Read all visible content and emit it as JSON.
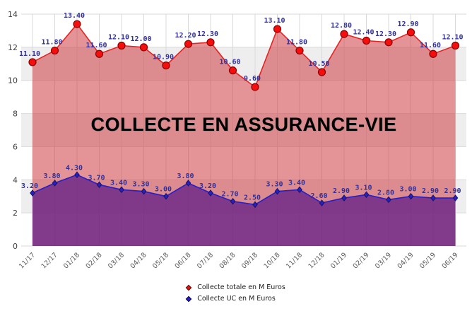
{
  "title": "COLLECTE EN ASSURANCE-VIE",
  "legend": {
    "items": [
      {
        "label": "Collecte totale en M Euros",
        "marker": "diamond-icon",
        "color": "#e81111",
        "edge_color": "#5d0000"
      },
      {
        "label": "Collecte UC en M Euros",
        "marker": "diamond-icon",
        "color": "#2a1fc4",
        "edge_color": "#000050"
      }
    ]
  },
  "chart_data": {
    "type": "area",
    "title": "COLLECTE EN ASSURANCE-VIE",
    "categories": [
      "11/17",
      "12/17",
      "01/18",
      "02/18",
      "03/18",
      "04/18",
      "05/18",
      "06/18",
      "07/18",
      "08/18",
      "09/18",
      "10/18",
      "11/18",
      "12/18",
      "01/19",
      "02/19",
      "03/19",
      "04/19",
      "05/19",
      "06/19"
    ],
    "series": [
      {
        "name": "Collecte totale en M Euros",
        "values": [
          11.1,
          11.8,
          13.4,
          11.6,
          12.1,
          12.0,
          10.9,
          12.2,
          12.3,
          10.6,
          9.6,
          13.1,
          11.8,
          10.5,
          12.8,
          12.4,
          12.3,
          12.9,
          11.6,
          12.1
        ],
        "line_color": "#e52323",
        "fill_color": "rgba(205,60,66,0.55)",
        "marker": "circle",
        "marker_color": "#f60d0d",
        "marker_edge": "#8b0000"
      },
      {
        "name": "Collecte UC en M Euros",
        "values": [
          3.2,
          3.8,
          4.3,
          3.7,
          3.4,
          3.3,
          3.0,
          3.8,
          3.2,
          2.7,
          2.5,
          3.3,
          3.4,
          2.6,
          2.9,
          3.1,
          2.8,
          3.0,
          2.9,
          2.9
        ],
        "line_color": "#2620c9",
        "fill_color": "rgba(105,35,135,0.80)",
        "marker": "diamond",
        "marker_color": "#2a1fc4",
        "marker_edge": "#141466"
      }
    ],
    "xlabel": "",
    "ylabel": "",
    "ylim": [
      0,
      14
    ],
    "yticks": [
      0,
      2,
      4,
      6,
      8,
      10,
      12,
      14
    ],
    "grid": true,
    "band_colors": [
      "#ffffff",
      "#eeeeee"
    ],
    "gridline_color": "#d9d9d9",
    "value_label_color": "#31309b",
    "x_axis_label_color": "#595959",
    "y_axis_label_color": "#404040",
    "value_label_decimals": 2,
    "legend_position": "bottom-center"
  }
}
